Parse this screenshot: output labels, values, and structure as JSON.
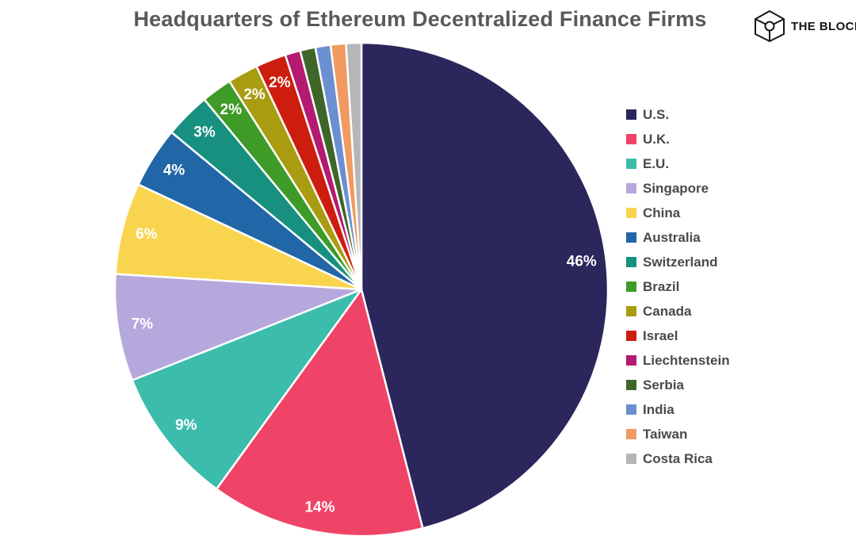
{
  "header": {
    "brand": {
      "name": "THE BLOCK"
    }
  },
  "chart_data": {
    "type": "pie",
    "title": "Headquarters of Ethereum Decentralized Finance Firms",
    "unit": "%",
    "legend_position": "right",
    "direction": "clockwise",
    "start_angle_deg": 0,
    "label_threshold_pct": 2,
    "background_color": "#ffffff",
    "title_color": "#58595b",
    "legend_text_color": "#4a4a4c",
    "slice_border_color": "#ffffff",
    "data_label_color": "#ffffff",
    "slices": [
      {
        "label": "U.S.",
        "value": 46,
        "color": "#2b265c",
        "data_label": "46%"
      },
      {
        "label": "U.K.",
        "value": 14,
        "color": "#ef4367",
        "data_label": "14%"
      },
      {
        "label": "E.U.",
        "value": 9,
        "color": "#3cbcab",
        "data_label": "9%"
      },
      {
        "label": "Singapore",
        "value": 7,
        "color": "#b5a8dd",
        "data_label": "7%"
      },
      {
        "label": "China",
        "value": 6,
        "color": "#f9d54f",
        "data_label": "6%"
      },
      {
        "label": "Australia",
        "value": 4,
        "color": "#2166a6",
        "data_label": "4%"
      },
      {
        "label": "Switzerland",
        "value": 3,
        "color": "#17907f",
        "data_label": "3%"
      },
      {
        "label": "Brazil",
        "value": 2,
        "color": "#3e9b27",
        "data_label": "2%"
      },
      {
        "label": "Canada",
        "value": 2,
        "color": "#a99c10",
        "data_label": "2%"
      },
      {
        "label": "Israel",
        "value": 2,
        "color": "#cd1d0e",
        "data_label": "2%"
      },
      {
        "label": "Liechtenstein",
        "value": 1,
        "color": "#b41a6f",
        "data_label": ""
      },
      {
        "label": "Serbia",
        "value": 1,
        "color": "#3e6629",
        "data_label": ""
      },
      {
        "label": "India",
        "value": 1,
        "color": "#6b8fd0",
        "data_label": ""
      },
      {
        "label": "Taiwan",
        "value": 1,
        "color": "#f09a61",
        "data_label": ""
      },
      {
        "label": "Costa Rica",
        "value": 1,
        "color": "#b6b6b6",
        "data_label": ""
      }
    ]
  }
}
